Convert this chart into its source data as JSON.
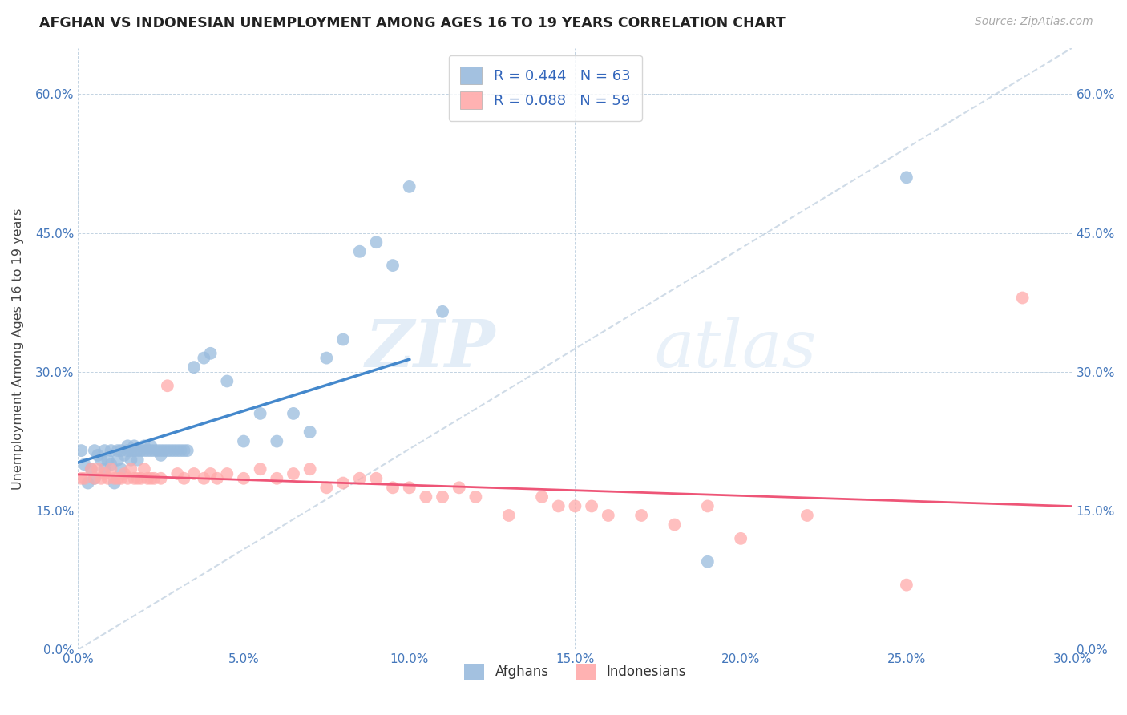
{
  "title": "AFGHAN VS INDONESIAN UNEMPLOYMENT AMONG AGES 16 TO 19 YEARS CORRELATION CHART",
  "source": "Source: ZipAtlas.com",
  "ylabel": "Unemployment Among Ages 16 to 19 years",
  "xmin": 0.0,
  "xmax": 0.3,
  "ymin": 0.0,
  "ymax": 0.65,
  "afghan_color": "#99BBDD",
  "indonesian_color": "#FFAAAA",
  "afghan_line_color": "#4488CC",
  "indonesian_line_color": "#EE5577",
  "diag_color": "#BBCCDD",
  "afghan_R": "0.444",
  "afghan_N": "63",
  "indonesian_R": "0.088",
  "indonesian_N": "59",
  "watermark_text": "ZIPatlas",
  "x_tick_vals": [
    0.0,
    0.05,
    0.1,
    0.15,
    0.2,
    0.25,
    0.3
  ],
  "y_tick_vals": [
    0.0,
    0.15,
    0.3,
    0.45,
    0.6
  ],
  "afghans_x": [
    0.001,
    0.002,
    0.003,
    0.004,
    0.005,
    0.005,
    0.006,
    0.007,
    0.008,
    0.008,
    0.009,
    0.01,
    0.01,
    0.011,
    0.012,
    0.012,
    0.013,
    0.013,
    0.014,
    0.015,
    0.015,
    0.016,
    0.016,
    0.017,
    0.017,
    0.018,
    0.018,
    0.019,
    0.02,
    0.02,
    0.021,
    0.022,
    0.022,
    0.023,
    0.024,
    0.025,
    0.025,
    0.026,
    0.027,
    0.028,
    0.029,
    0.03,
    0.031,
    0.032,
    0.033,
    0.035,
    0.038,
    0.04,
    0.045,
    0.05,
    0.055,
    0.06,
    0.065,
    0.07,
    0.075,
    0.08,
    0.085,
    0.09,
    0.095,
    0.1,
    0.11,
    0.19,
    0.25
  ],
  "afghans_y": [
    0.215,
    0.2,
    0.18,
    0.195,
    0.185,
    0.215,
    0.21,
    0.205,
    0.195,
    0.215,
    0.205,
    0.2,
    0.215,
    0.18,
    0.215,
    0.205,
    0.215,
    0.195,
    0.21,
    0.22,
    0.215,
    0.205,
    0.215,
    0.215,
    0.22,
    0.215,
    0.205,
    0.215,
    0.215,
    0.22,
    0.215,
    0.215,
    0.22,
    0.215,
    0.215,
    0.21,
    0.215,
    0.215,
    0.215,
    0.215,
    0.215,
    0.215,
    0.215,
    0.215,
    0.215,
    0.305,
    0.315,
    0.32,
    0.29,
    0.225,
    0.255,
    0.225,
    0.255,
    0.235,
    0.315,
    0.335,
    0.43,
    0.44,
    0.415,
    0.5,
    0.365,
    0.095,
    0.51
  ],
  "indonesians_x": [
    0.001,
    0.002,
    0.004,
    0.005,
    0.006,
    0.007,
    0.008,
    0.009,
    0.01,
    0.011,
    0.012,
    0.013,
    0.014,
    0.015,
    0.016,
    0.017,
    0.018,
    0.019,
    0.02,
    0.021,
    0.022,
    0.023,
    0.025,
    0.027,
    0.03,
    0.032,
    0.035,
    0.038,
    0.04,
    0.042,
    0.045,
    0.05,
    0.055,
    0.06,
    0.065,
    0.07,
    0.075,
    0.08,
    0.085,
    0.09,
    0.095,
    0.1,
    0.105,
    0.11,
    0.115,
    0.12,
    0.13,
    0.14,
    0.145,
    0.15,
    0.155,
    0.16,
    0.17,
    0.18,
    0.19,
    0.2,
    0.22,
    0.25,
    0.285
  ],
  "indonesians_y": [
    0.185,
    0.185,
    0.195,
    0.185,
    0.195,
    0.185,
    0.19,
    0.185,
    0.195,
    0.185,
    0.185,
    0.185,
    0.19,
    0.185,
    0.195,
    0.185,
    0.185,
    0.185,
    0.195,
    0.185,
    0.185,
    0.185,
    0.185,
    0.285,
    0.19,
    0.185,
    0.19,
    0.185,
    0.19,
    0.185,
    0.19,
    0.185,
    0.195,
    0.185,
    0.19,
    0.195,
    0.175,
    0.18,
    0.185,
    0.185,
    0.175,
    0.175,
    0.165,
    0.165,
    0.175,
    0.165,
    0.145,
    0.165,
    0.155,
    0.155,
    0.155,
    0.145,
    0.145,
    0.135,
    0.155,
    0.12,
    0.145,
    0.07,
    0.38
  ]
}
